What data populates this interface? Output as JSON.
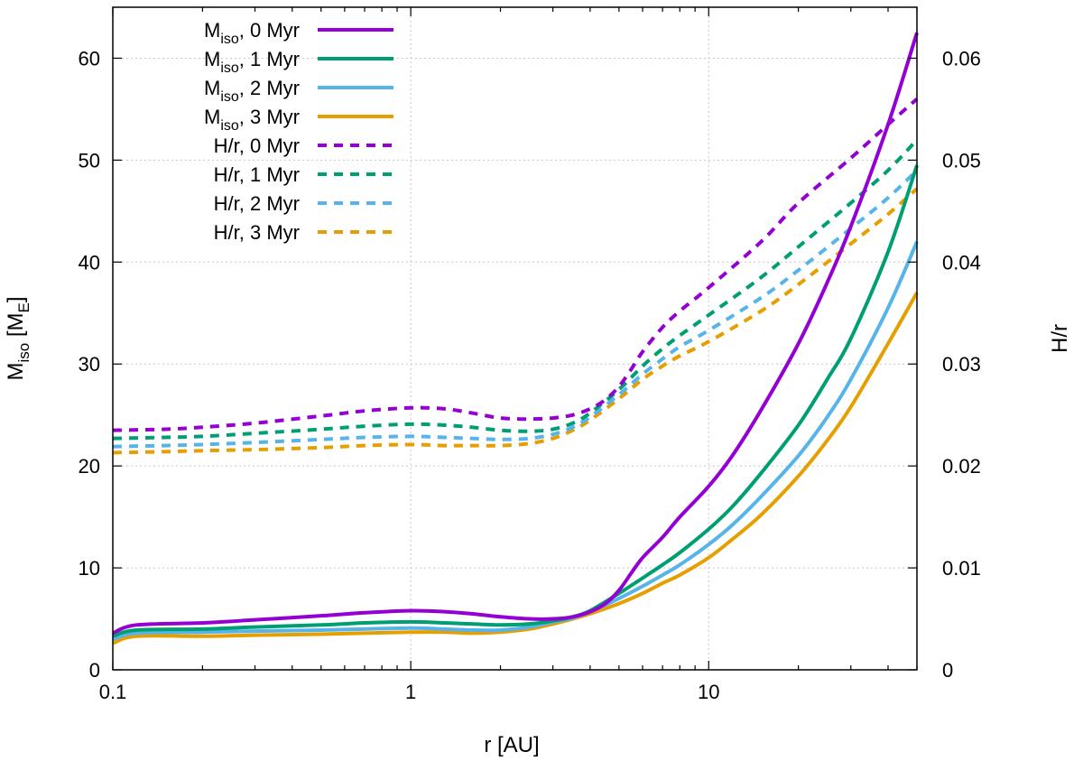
{
  "chart_data": {
    "type": "line",
    "xlabel": "r [AU]",
    "ylabel_left": {
      "main": "M",
      "sub": "iso",
      "rest": " [M",
      "sub2": "E",
      "close": "]"
    },
    "ylabel_right": "H/r",
    "x_scale": "log",
    "xlim": [
      0.1,
      50
    ],
    "ylim_left": [
      0,
      65
    ],
    "ylim_right": [
      0,
      0.065
    ],
    "x_ticks": [
      {
        "value": 0.1,
        "label": "0.1"
      },
      {
        "value": 1,
        "label": "1"
      },
      {
        "value": 10,
        "label": "10"
      }
    ],
    "y_ticks_left": [
      {
        "value": 0,
        "label": "0"
      },
      {
        "value": 10,
        "label": "10"
      },
      {
        "value": 20,
        "label": "20"
      },
      {
        "value": 30,
        "label": "30"
      },
      {
        "value": 40,
        "label": "40"
      },
      {
        "value": 50,
        "label": "50"
      },
      {
        "value": 60,
        "label": "60"
      }
    ],
    "y_ticks_right": [
      {
        "value": 0,
        "label": "0"
      },
      {
        "value": 0.01,
        "label": "0.01"
      },
      {
        "value": 0.02,
        "label": "0.02"
      },
      {
        "value": 0.03,
        "label": "0.03"
      },
      {
        "value": 0.04,
        "label": "0.04"
      },
      {
        "value": 0.05,
        "label": "0.05"
      },
      {
        "value": 0.06,
        "label": "0.06"
      }
    ],
    "grid": true,
    "legend_position": "top-left",
    "series": [
      {
        "name": "M_iso, 0 Myr",
        "label_main": "M",
        "label_sub": "iso",
        "label_rest": ", 0 Myr",
        "axis": "left",
        "style": "solid",
        "color": "#9400d3",
        "x": [
          0.1,
          0.12,
          0.2,
          0.3,
          0.5,
          0.7,
          1.0,
          1.3,
          1.6,
          2.0,
          2.5,
          3.0,
          3.5,
          4.0,
          4.5,
          5.0,
          5.5,
          6.0,
          7.0,
          8.0,
          10,
          12,
          15,
          20,
          25,
          30,
          40,
          50
        ],
        "y": [
          3.6,
          4.4,
          4.6,
          4.9,
          5.3,
          5.6,
          5.8,
          5.7,
          5.5,
          5.2,
          5.0,
          5.0,
          5.2,
          5.7,
          6.5,
          7.8,
          9.5,
          11.0,
          13.0,
          15.0,
          18.0,
          21.0,
          25.5,
          32.0,
          38.0,
          43.5,
          53.5,
          62.5
        ]
      },
      {
        "name": "M_iso, 1 Myr",
        "label_main": "M",
        "label_sub": "iso",
        "label_rest": ", 1 Myr",
        "axis": "left",
        "style": "solid",
        "color": "#009e73",
        "x": [
          0.1,
          0.12,
          0.2,
          0.3,
          0.5,
          0.7,
          1.0,
          1.3,
          1.6,
          2.0,
          2.5,
          3.0,
          3.5,
          4.0,
          5.0,
          6.0,
          7.0,
          8.0,
          10,
          12,
          15,
          20,
          25,
          30,
          40,
          50
        ],
        "y": [
          3.3,
          3.9,
          4.0,
          4.2,
          4.4,
          4.6,
          4.7,
          4.6,
          4.5,
          4.4,
          4.5,
          4.8,
          5.2,
          5.8,
          7.5,
          9.0,
          10.3,
          11.5,
          13.8,
          16.0,
          19.3,
          24.0,
          28.5,
          32.5,
          41.0,
          49.5
        ]
      },
      {
        "name": "M_iso, 2 Myr",
        "label_main": "M",
        "label_sub": "iso",
        "label_rest": ", 2 Myr",
        "axis": "left",
        "style": "solid",
        "color": "#56b4e9",
        "x": [
          0.1,
          0.12,
          0.2,
          0.3,
          0.5,
          0.7,
          1.0,
          1.3,
          1.6,
          2.0,
          2.5,
          3.0,
          3.5,
          4.0,
          5.0,
          6.0,
          7.0,
          8.0,
          10,
          12,
          15,
          20,
          25,
          30,
          40,
          50
        ],
        "y": [
          3.0,
          3.6,
          3.7,
          3.8,
          3.9,
          4.0,
          4.1,
          4.0,
          3.9,
          3.9,
          4.2,
          4.7,
          5.1,
          5.7,
          7.0,
          8.2,
          9.3,
          10.3,
          12.3,
          14.2,
          17.0,
          21.0,
          24.8,
          28.5,
          35.5,
          42.0
        ]
      },
      {
        "name": "M_iso, 3 Myr",
        "label_main": "M",
        "label_sub": "iso",
        "label_rest": ", 3 Myr",
        "axis": "left",
        "style": "solid",
        "color": "#e69f00",
        "x": [
          0.1,
          0.12,
          0.2,
          0.3,
          0.5,
          0.7,
          1.0,
          1.3,
          1.6,
          2.0,
          2.5,
          3.0,
          3.5,
          4.0,
          5.0,
          6.0,
          7.0,
          8.0,
          10,
          12,
          15,
          20,
          25,
          30,
          40,
          50
        ],
        "y": [
          2.6,
          3.3,
          3.3,
          3.4,
          3.5,
          3.6,
          3.7,
          3.7,
          3.6,
          3.7,
          4.0,
          4.5,
          5.0,
          5.5,
          6.5,
          7.5,
          8.5,
          9.3,
          11.0,
          12.8,
          15.2,
          19.0,
          22.5,
          25.8,
          32.0,
          37.0
        ]
      },
      {
        "name": "H/r, 0 Myr",
        "axis": "right",
        "style": "dashed",
        "color": "#9400d3",
        "x": [
          0.1,
          0.15,
          0.2,
          0.3,
          0.5,
          0.7,
          1.0,
          1.3,
          1.6,
          2.0,
          2.5,
          3.0,
          3.5,
          4.0,
          4.5,
          5.0,
          5.5,
          6.0,
          7.0,
          8.0,
          10,
          15,
          20,
          30,
          40,
          50
        ],
        "y": [
          0.0235,
          0.0236,
          0.0238,
          0.0242,
          0.0249,
          0.0254,
          0.0257,
          0.0256,
          0.0252,
          0.0247,
          0.0246,
          0.0247,
          0.025,
          0.0256,
          0.0265,
          0.0278,
          0.0295,
          0.0312,
          0.0336,
          0.0352,
          0.0375,
          0.042,
          0.0458,
          0.0502,
          0.0535,
          0.056
        ]
      },
      {
        "name": "H/r, 1 Myr",
        "axis": "right",
        "style": "dashed",
        "color": "#009e73",
        "x": [
          0.1,
          0.15,
          0.2,
          0.3,
          0.5,
          0.7,
          1.0,
          1.3,
          1.6,
          2.0,
          2.5,
          3.0,
          3.5,
          4.0,
          5.0,
          6.0,
          7.0,
          8.0,
          10,
          15,
          20,
          30,
          40,
          50
        ],
        "y": [
          0.0227,
          0.0228,
          0.0229,
          0.0232,
          0.0236,
          0.0239,
          0.0241,
          0.024,
          0.0238,
          0.0235,
          0.0234,
          0.0236,
          0.0242,
          0.0252,
          0.0275,
          0.0298,
          0.0315,
          0.0328,
          0.0348,
          0.0385,
          0.0415,
          0.0458,
          0.049,
          0.052
        ]
      },
      {
        "name": "H/r, 2 Myr",
        "axis": "right",
        "style": "dashed",
        "color": "#56b4e9",
        "x": [
          0.1,
          0.15,
          0.2,
          0.3,
          0.5,
          0.7,
          1.0,
          1.3,
          1.6,
          2.0,
          2.5,
          3.0,
          3.5,
          4.0,
          5.0,
          6.0,
          7.0,
          8.0,
          10,
          15,
          20,
          30,
          40,
          50
        ],
        "y": [
          0.0219,
          0.022,
          0.0221,
          0.0223,
          0.0226,
          0.0228,
          0.0229,
          0.0228,
          0.0227,
          0.0226,
          0.0227,
          0.0231,
          0.0238,
          0.0248,
          0.027,
          0.029,
          0.0305,
          0.0317,
          0.0333,
          0.0365,
          0.0392,
          0.0433,
          0.0463,
          0.049
        ]
      },
      {
        "name": "H/r, 3 Myr",
        "axis": "right",
        "style": "dashed",
        "color": "#e69f00",
        "x": [
          0.1,
          0.15,
          0.2,
          0.3,
          0.5,
          0.7,
          1.0,
          1.3,
          1.6,
          2.0,
          2.5,
          3.0,
          3.5,
          4.0,
          5.0,
          6.0,
          7.0,
          8.0,
          10,
          15,
          20,
          30,
          40,
          50
        ],
        "y": [
          0.0213,
          0.0214,
          0.0215,
          0.0216,
          0.0218,
          0.022,
          0.0221,
          0.022,
          0.022,
          0.022,
          0.0222,
          0.0227,
          0.0235,
          0.0245,
          0.0266,
          0.0285,
          0.0298,
          0.0308,
          0.0322,
          0.0352,
          0.0378,
          0.0418,
          0.0447,
          0.0472
        ]
      }
    ]
  }
}
